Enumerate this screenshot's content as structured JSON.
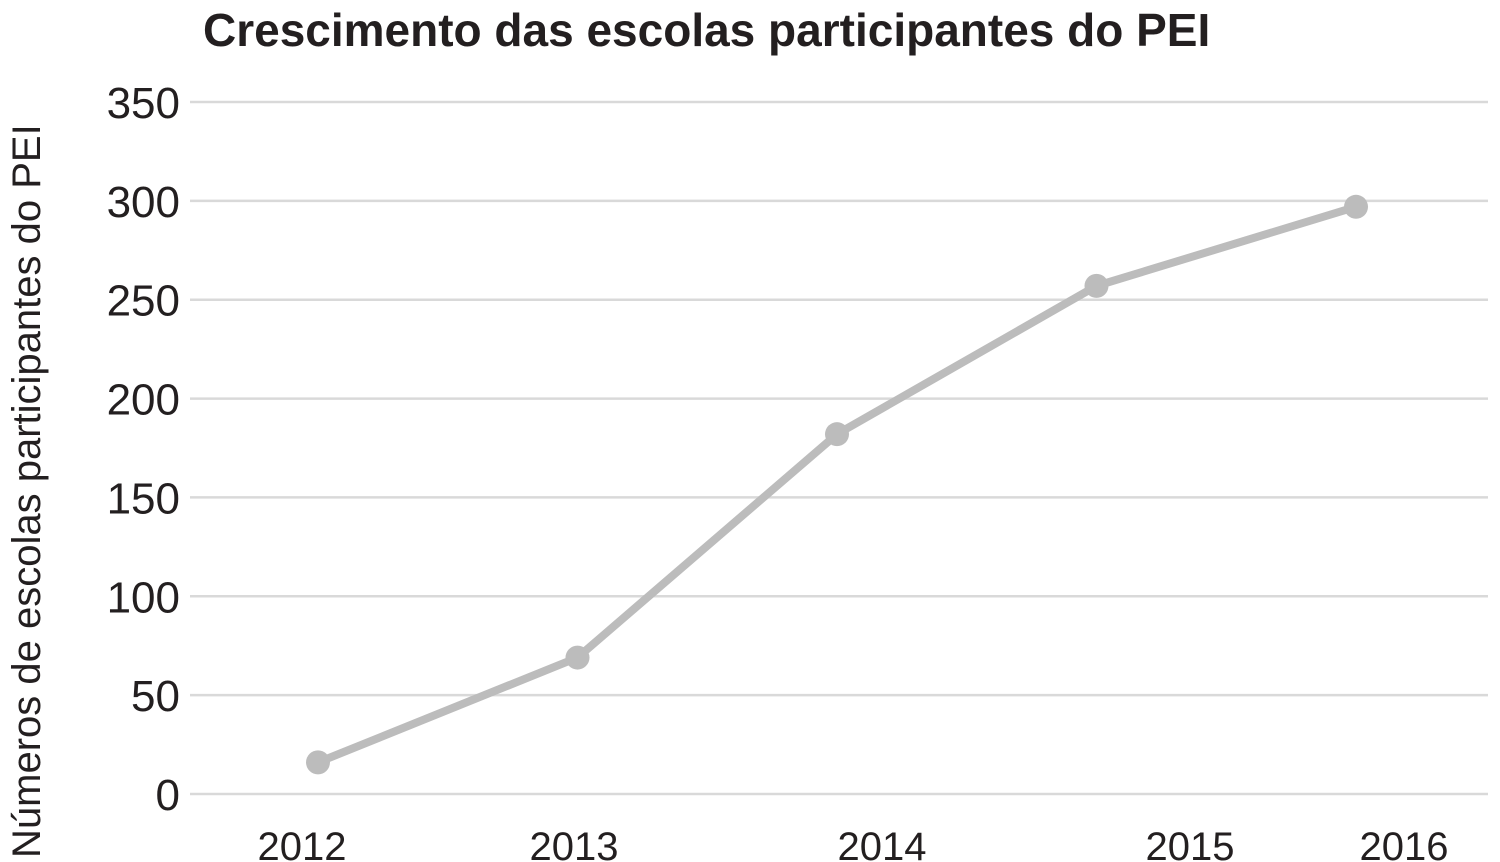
{
  "chart_data": {
    "type": "line",
    "title": "Crescimento das escolas participantes do PEI",
    "xlabel": "",
    "ylabel": "Números de escolas participantes do PEI",
    "categories": [
      "2012",
      "2013",
      "2014",
      "2015",
      "2016"
    ],
    "x": [
      2012.0,
      2013.0,
      2014.0,
      2015.0,
      2016.0
    ],
    "series": [
      {
        "values": [
          16,
          69,
          182,
          257,
          297
        ],
        "color": "#bcbcbc"
      }
    ],
    "yticks": [
      0,
      50,
      100,
      150,
      200,
      250,
      300,
      350
    ],
    "ylim": [
      0,
      350
    ],
    "grid": true,
    "legend": "none"
  },
  "colors": {
    "line": "#bcbcbc",
    "grid": "#d9d9d9",
    "text": "#231f20"
  }
}
